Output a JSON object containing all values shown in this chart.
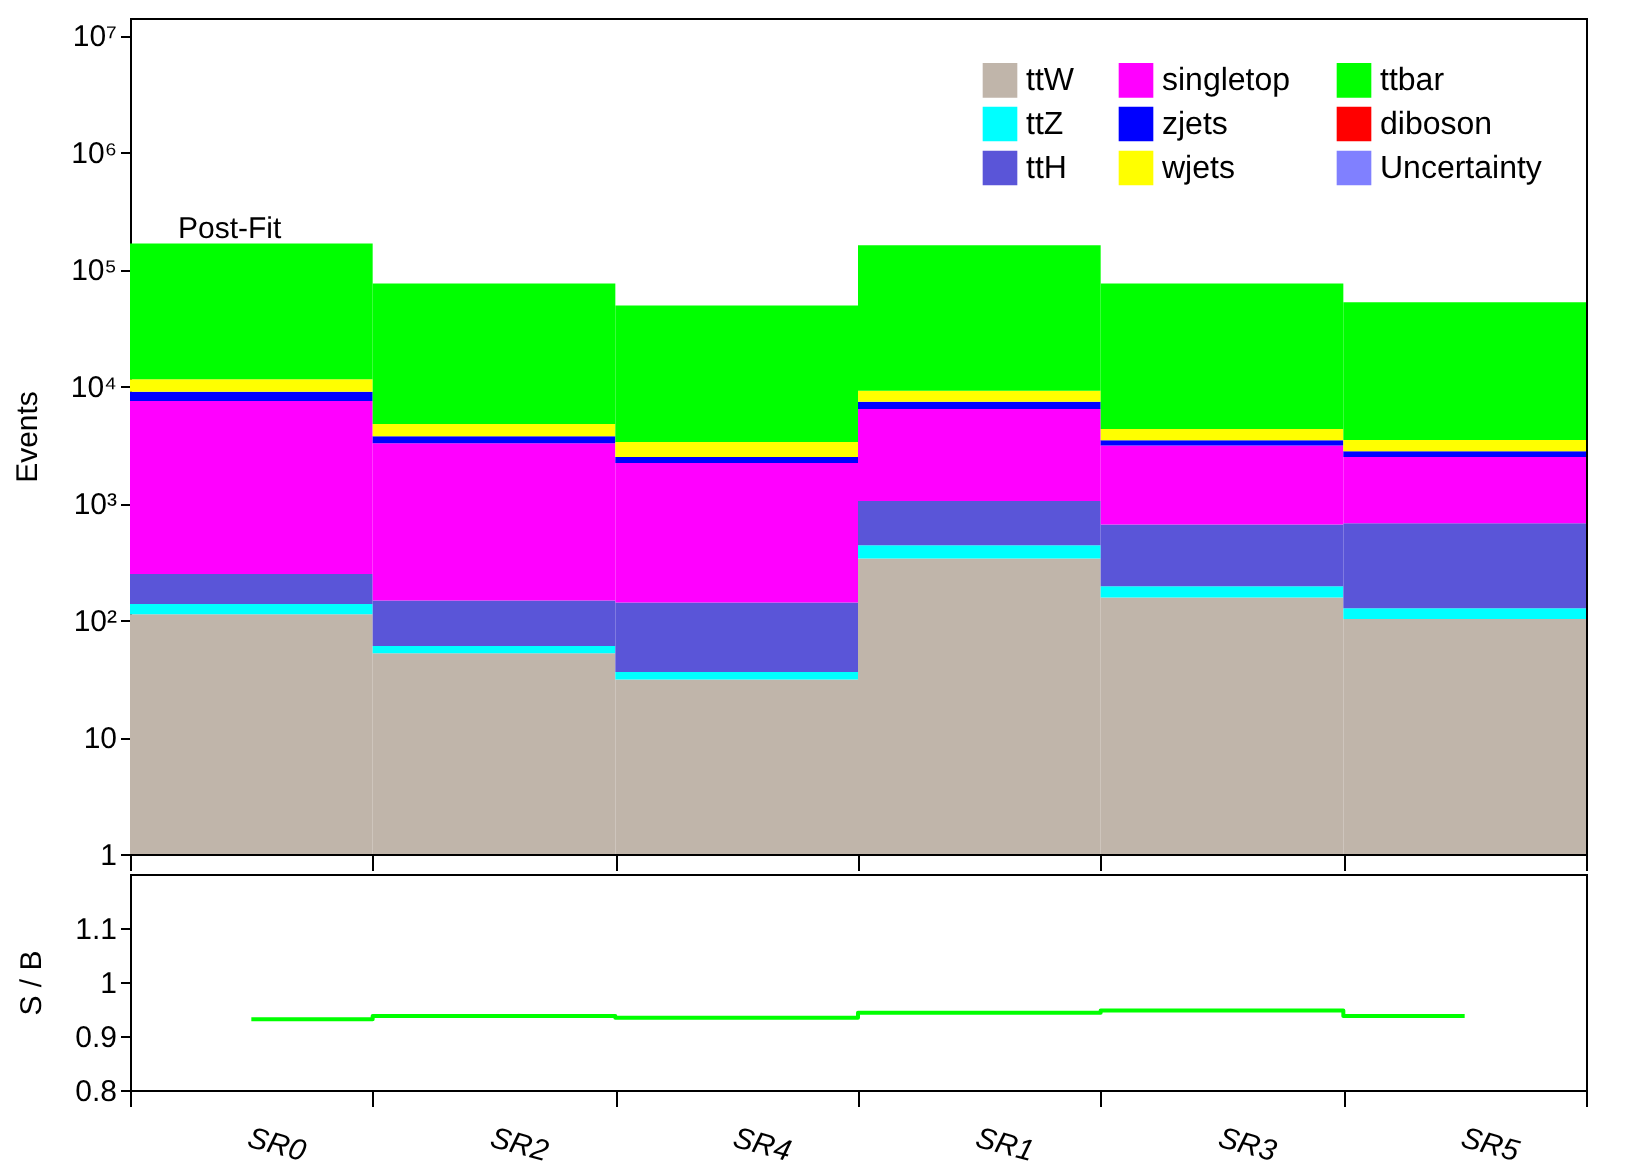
{
  "chart_data": [
    {
      "type": "bar",
      "stacked": true,
      "log": true,
      "ylabel": "Events",
      "annotations": [
        "Post-Fit"
      ],
      "legend": "top right",
      "tick_labels": "y",
      "categories": [
        null,
        null,
        null,
        null,
        null,
        null
      ],
      "ylim": [
        1,
        14000000
      ],
      "yticks": [
        1,
        10,
        {
          "value": 100,
          "label": "10²"
        },
        {
          "value": 1000,
          "label": "10³"
        },
        {
          "value": 10000,
          "label": "10⁴"
        },
        {
          "value": 100000,
          "label": "10⁵"
        },
        {
          "value": 1000000,
          "label": "10⁶"
        },
        {
          "value": 10000000,
          "label": "10⁷"
        }
      ],
      "series": [
        {
          "name": "ttW",
          "color": "#c0b5aa",
          "values": [
            112,
            52,
            31,
            336,
            156,
            102
          ]
        },
        {
          "name": "ttZ",
          "color": "#00ffff",
          "values": [
            25,
            8,
            5,
            99,
            38,
            24
          ]
        },
        {
          "name": "ttH",
          "color": "#5a55d8",
          "values": [
            110,
            87,
            105,
            605,
            462,
            545
          ]
        },
        {
          "name": "singletop",
          "color": "#ff00ff",
          "values": [
            7200,
            3090,
            2060,
            5340,
            2450,
            1800
          ]
        },
        {
          "name": "zjets",
          "color": "#0000ff",
          "values": [
            1500,
            490,
            270,
            980,
            340,
            300
          ]
        },
        {
          "name": "wjets",
          "color": "#ffff00",
          "values": [
            2500,
            1020,
            850,
            1760,
            850,
            680
          ]
        },
        {
          "name": "ttbar",
          "color": "#00ff00",
          "values": [
            154000,
            70500,
            45500,
            151000,
            71000,
            48650
          ]
        },
        {
          "name": "diboson",
          "color": "#ff0000",
          "values": [
            null,
            null,
            null,
            null,
            null,
            null
          ]
        },
        {
          "name": "Uncertainty",
          "color": "#8080ff",
          "values": [
            null,
            null,
            null,
            null,
            null,
            null
          ]
        }
      ]
    },
    {
      "type": "step",
      "ylabel": "S / B",
      "color": "#00ff00",
      "categories": [
        "SR0",
        "SR2",
        "SR4",
        "SR1",
        "SR3",
        "SR5"
      ],
      "values": [
        0.931,
        0.937,
        0.934,
        0.943,
        0.947,
        0.937
      ],
      "ylim": [
        0.8,
        1.2
      ],
      "yticks": [
        0.8,
        0.9,
        1,
        1.1
      ]
    }
  ]
}
